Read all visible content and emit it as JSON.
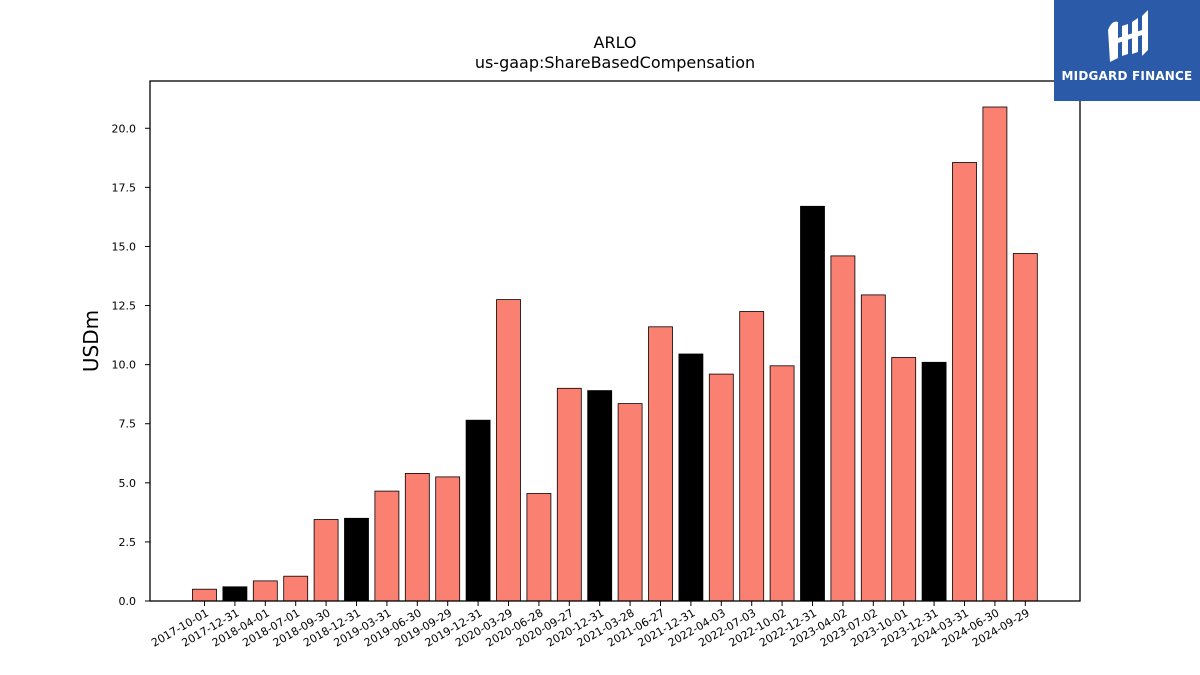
{
  "chart_data": {
    "type": "bar",
    "title": "ARLO",
    "subtitle": "us-gaap:ShareBasedCompensation",
    "xlabel": "",
    "ylabel": "USDm",
    "ylim": [
      0,
      22
    ],
    "yticks": [
      "0.0",
      "2.5",
      "5.0",
      "7.5",
      "10.0",
      "12.5",
      "15.0",
      "17.5",
      "20.0"
    ],
    "grid": false,
    "categories": [
      "2017-10-01",
      "2017-12-31",
      "2018-04-01",
      "2018-07-01",
      "2018-09-30",
      "2018-12-31",
      "2019-03-31",
      "2019-06-30",
      "2019-09-29",
      "2019-12-31",
      "2020-03-29",
      "2020-06-28",
      "2020-09-27",
      "2020-12-31",
      "2021-03-28",
      "2021-06-27",
      "2021-12-31",
      "2022-04-03",
      "2022-07-03",
      "2022-10-02",
      "2022-12-31",
      "2023-04-02",
      "2023-07-02",
      "2023-10-01",
      "2023-12-31",
      "2024-03-31",
      "2024-06-30",
      "2024-09-29"
    ],
    "values": [
      0.5,
      0.6,
      0.85,
      1.05,
      3.45,
      3.5,
      4.65,
      5.4,
      5.25,
      7.65,
      12.75,
      4.55,
      9.0,
      8.9,
      8.35,
      11.6,
      10.45,
      9.6,
      12.25,
      9.95,
      16.7,
      14.6,
      12.95,
      10.3,
      10.1,
      18.55,
      20.9,
      14.7
    ],
    "bar_types": [
      "q",
      "a",
      "q",
      "q",
      "q",
      "a",
      "q",
      "q",
      "q",
      "a",
      "q",
      "q",
      "q",
      "a",
      "q",
      "q",
      "a",
      "q",
      "q",
      "q",
      "a",
      "q",
      "q",
      "q",
      "a",
      "q",
      "q",
      "q"
    ],
    "colors": {
      "quarter": "#fa8072",
      "annual": "#000000",
      "edge": "#000000"
    }
  },
  "logo": {
    "text": "MIDGARD FINANCE",
    "background": "#2a5aa8"
  }
}
